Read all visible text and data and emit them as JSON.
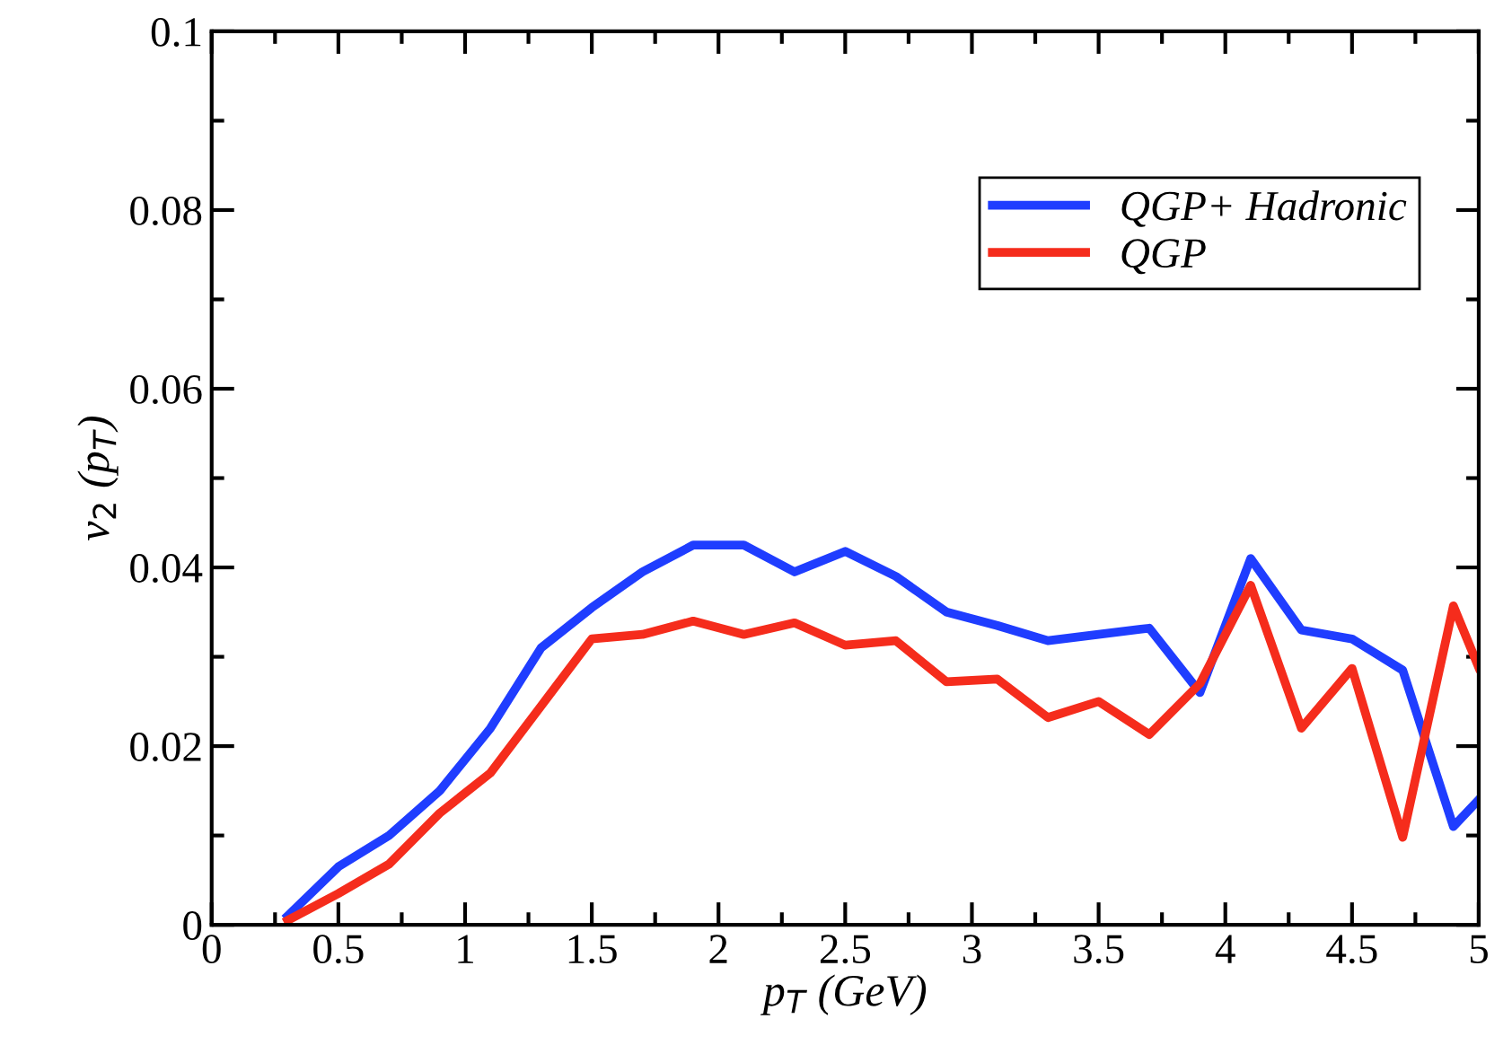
{
  "chart_data": {
    "type": "line",
    "xlabel": "p$_{T}$ (GeV)",
    "ylabel": "v$_{2}$ (p$_{T}$)",
    "x": [
      0.3,
      0.5,
      0.7,
      0.9,
      1.1,
      1.3,
      1.5,
      1.7,
      1.9,
      2.1,
      2.3,
      2.5,
      2.7,
      2.9,
      3.1,
      3.3,
      3.5,
      3.7,
      3.9,
      4.1,
      4.3,
      4.5,
      4.7,
      4.9,
      5.0
    ],
    "series": [
      {
        "name": "QGP+ Hadronic",
        "color": "#1f3dff",
        "values": [
          0.001,
          0.0065,
          0.01,
          0.015,
          0.022,
          0.031,
          0.0355,
          0.0395,
          0.0425,
          0.0425,
          0.0395,
          0.0418,
          0.039,
          0.035,
          0.0335,
          0.0318,
          0.0325,
          0.0332,
          0.026,
          0.041,
          0.033,
          0.032,
          0.0285,
          0.011,
          0.014
        ]
      },
      {
        "name": "QGP",
        "color": "#f52c1c",
        "values": [
          0.0005,
          0.0035,
          0.0068,
          0.0125,
          0.017,
          0.0245,
          0.032,
          0.0325,
          0.034,
          0.0325,
          0.0338,
          0.0313,
          0.0318,
          0.0272,
          0.0275,
          0.0232,
          0.025,
          0.0213,
          0.027,
          0.038,
          0.022,
          0.0287,
          0.0098,
          0.0357,
          0.0288
        ]
      }
    ],
    "xlim": [
      0,
      5
    ],
    "ylim": [
      0,
      0.1
    ],
    "xticks": [
      0,
      0.5,
      1,
      1.5,
      2,
      2.5,
      3,
      3.5,
      4,
      4.5,
      5
    ],
    "yticks": [
      0,
      0.02,
      0.04,
      0.06,
      0.08,
      0.1
    ],
    "legend": "top right",
    "grid": false,
    "marker": "none",
    "line_style": "solid"
  }
}
